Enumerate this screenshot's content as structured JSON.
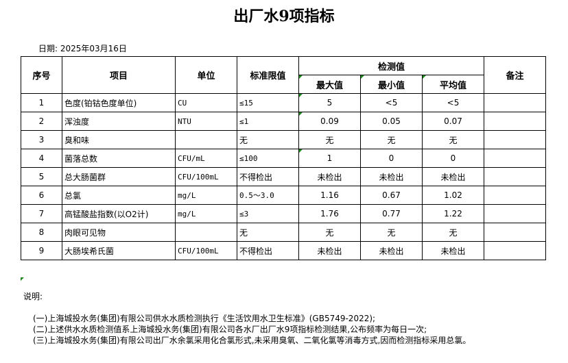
{
  "title": "出厂水9项指标",
  "date": "日期: 2025年03月16日",
  "headers": {
    "no": "序号",
    "item": "项目",
    "unit": "单位",
    "limit": "标准限值",
    "measured": "检测值",
    "max": "最大值",
    "min": "最小值",
    "avg": "平均值",
    "remark": "备注"
  },
  "rows": [
    {
      "no": "1",
      "item": "色度(铂钴色度单位)",
      "unit": "CU",
      "limit": "≤15",
      "max": "5",
      "min": "<5",
      "avg": "<5"
    },
    {
      "no": "2",
      "item": "浑浊度",
      "unit": "NTU",
      "limit": "≤1",
      "max": "0.09",
      "min": "0.05",
      "avg": "0.07"
    },
    {
      "no": "3",
      "item": "臭和味",
      "unit": "",
      "limit": "无",
      "max": "无",
      "min": "无",
      "avg": "无"
    },
    {
      "no": "4",
      "item": "菌落总数",
      "unit": "CFU/mL",
      "limit": "≤100",
      "max": "1",
      "min": "0",
      "avg": "0"
    },
    {
      "no": "5",
      "item": "总大肠菌群",
      "unit": "CFU/100mL",
      "limit": "不得检出",
      "max": "未检出",
      "min": "未检出",
      "avg": "未检出"
    },
    {
      "no": "6",
      "item": "总氯",
      "unit": "mg/L",
      "limit": "0.5～3.0",
      "max": "1.16",
      "min": "0.67",
      "avg": "1.02"
    },
    {
      "no": "7",
      "item": "高锰酸盐指数(以O2计)",
      "unit": "mg/L",
      "limit": "≤3",
      "max": "1.76",
      "min": "0.77",
      "avg": "1.22"
    },
    {
      "no": "8",
      "item": "肉眼可见物",
      "unit": "",
      "limit": "无",
      "max": "无",
      "min": "无",
      "avg": "无"
    },
    {
      "no": "9",
      "item": "大肠埃希氏菌",
      "unit": "CFU/100mL",
      "limit": "不得检出",
      "max": "未检出",
      "min": "未检出",
      "avg": "未检出"
    }
  ],
  "notes_label": "说明:",
  "notes": [
    "(一)上海城投水务(集团)有限公司供水水质检测执行《生活饮用水卫生标准》(GB5749-2022);",
    "(二)上述供水水质检测值系上海城投水务(集团)有限公司各水厂出厂水9项指标检测结果,公布频率为每日一次;",
    "(三)上海城投水务(集团)有限公司出厂水余氯采用化合氯形式,未采用臭氧、二氧化氯等消毒方式,因而检测指标采用总氯。"
  ]
}
